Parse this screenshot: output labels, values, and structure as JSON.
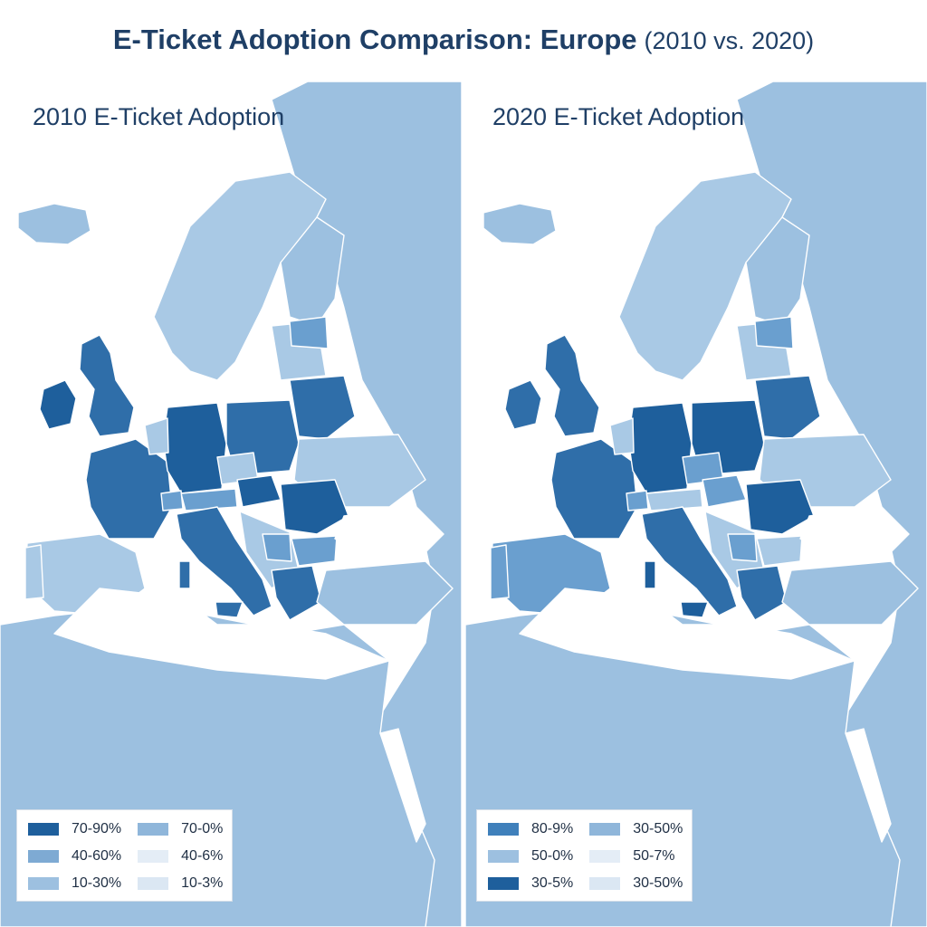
{
  "title": {
    "main": "E-Ticket Adoption Comparison: Europe",
    "sub": "(2010 vs. 2020)"
  },
  "panels": [
    {
      "heading": "2010 E-Ticket Adoption",
      "legend": [
        {
          "label": "70-90%",
          "color": "#1e5f9c"
        },
        {
          "label": "70-0%",
          "color": "#8fb6da"
        },
        {
          "label": "40-60%",
          "color": "#7eaad3"
        },
        {
          "label": "40-6%",
          "color": "#e4edf6"
        },
        {
          "label": "10-30%",
          "color": "#9dc0e0"
        },
        {
          "label": "10-3%",
          "color": "#dbe7f3"
        }
      ]
    },
    {
      "heading": "2020 E-Ticket Adoption",
      "legend": [
        {
          "label": "80-9%",
          "color": "#3f80bb"
        },
        {
          "label": "30-50%",
          "color": "#8fb6da"
        },
        {
          "label": "50-0%",
          "color": "#9dc0e0"
        },
        {
          "label": "50-7%",
          "color": "#e4edf6"
        },
        {
          "label": "30-5%",
          "color": "#1e5f9c"
        },
        {
          "label": "30-50%",
          "color": "#dbe7f3"
        }
      ]
    }
  ],
  "palette": {
    "sea": "#ffffff",
    "land": "#9cc0e0",
    "light": "#a9c9e5",
    "mid": "#6a9fcf",
    "dark": "#2f6ea9",
    "darkest": "#1e5f9c",
    "border": "#ffffff"
  }
}
